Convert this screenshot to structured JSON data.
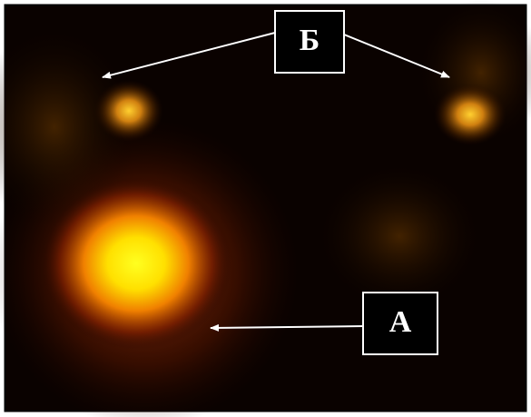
{
  "labels": {
    "top": "Б",
    "bottom": "А"
  }
}
